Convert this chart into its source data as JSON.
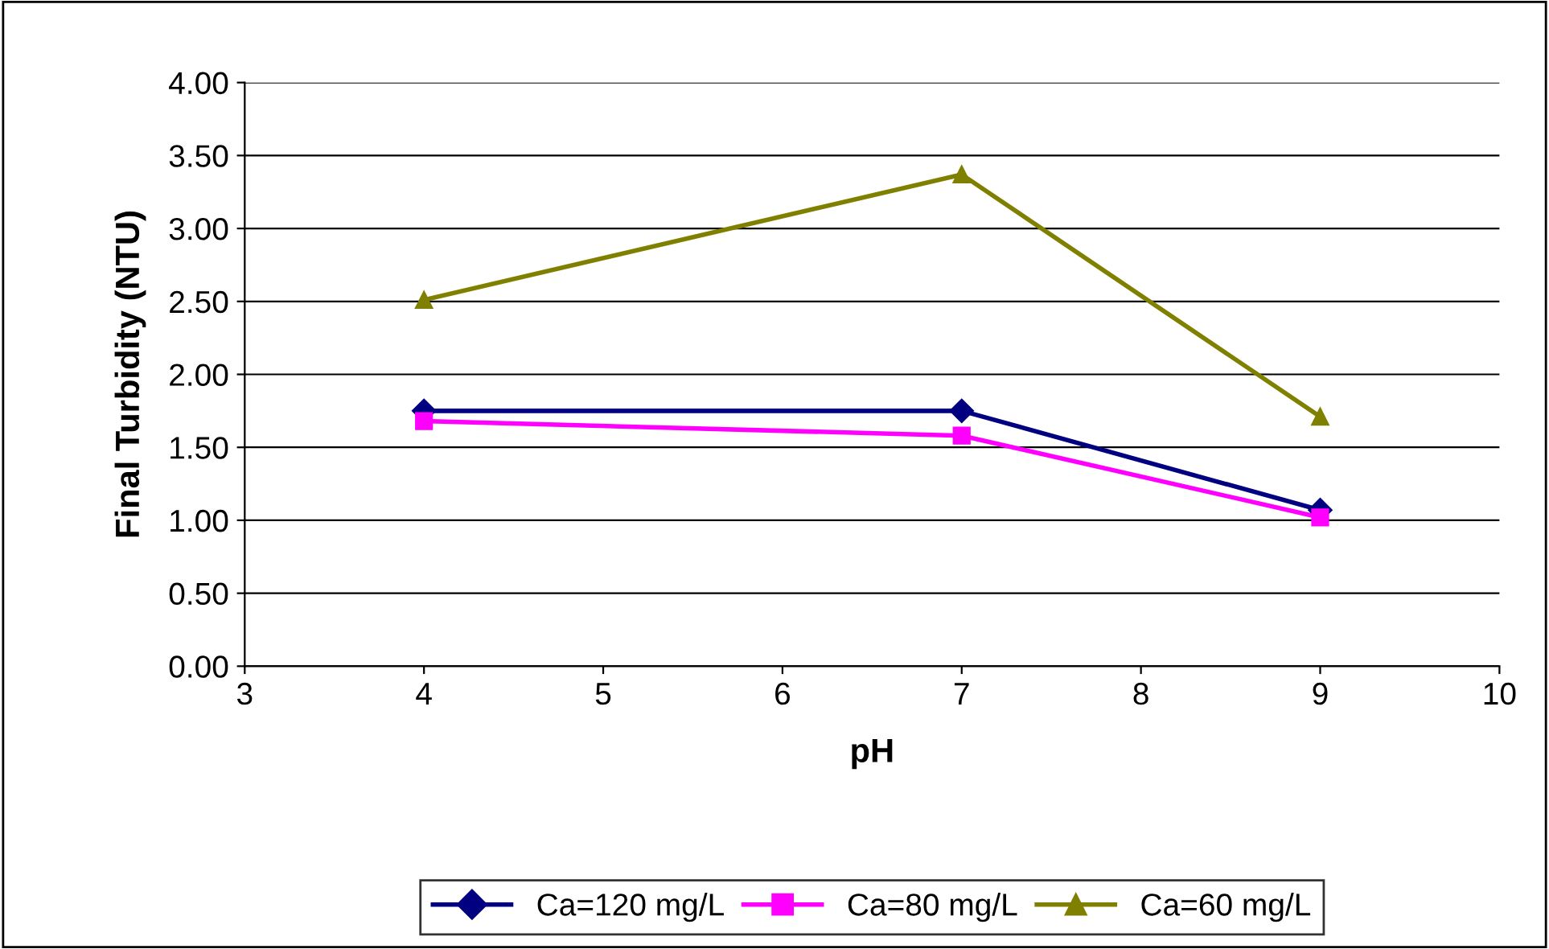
{
  "chart_data": {
    "type": "line",
    "xlabel": "pH",
    "ylabel": "Final Turbidity (NTU)",
    "xlim": [
      3,
      10
    ],
    "xticks": [
      3,
      4,
      5,
      6,
      7,
      8,
      9,
      10
    ],
    "ylim": [
      0,
      4
    ],
    "yticks": [
      {
        "value": 0,
        "label": "0.00"
      },
      {
        "value": 0.5,
        "label": "0.50"
      },
      {
        "value": 1,
        "label": "1.00"
      },
      {
        "value": 1.5,
        "label": "1.50"
      },
      {
        "value": 2,
        "label": "2.00"
      },
      {
        "value": 2.5,
        "label": "2.50"
      },
      {
        "value": 3,
        "label": "3.00"
      },
      {
        "value": 3.5,
        "label": "3.50"
      },
      {
        "value": 4,
        "label": "4.00"
      }
    ],
    "grid": "y",
    "legend": "bottom",
    "line_style": "solid",
    "series": [
      {
        "name": "Ca=120 mg/L",
        "color": "#000080",
        "marker": "diamond",
        "x": [
          4,
          7,
          9
        ],
        "values": [
          1.75,
          1.75,
          1.07
        ]
      },
      {
        "name": "Ca=80 mg/L",
        "color": "#ff00ff",
        "marker": "square",
        "x": [
          4,
          7,
          9
        ],
        "values": [
          1.68,
          1.58,
          1.02
        ]
      },
      {
        "name": "Ca=60 mg/L",
        "color": "#808000",
        "marker": "triangle",
        "x": [
          4,
          7,
          9
        ],
        "values": [
          2.51,
          3.37,
          1.71
        ]
      }
    ]
  }
}
